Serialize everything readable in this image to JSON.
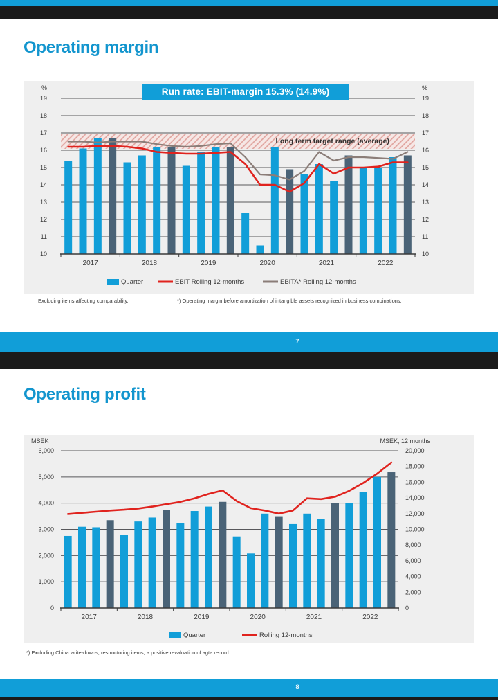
{
  "colors": {
    "accent_cyan": "#119ED8",
    "title_cyan": "#1295CE",
    "dark_bar": "#4A6377",
    "red_line": "#E0231E",
    "gray_line": "#8B7D78",
    "panel_bg": "#EFEFEF",
    "gridline": "#58585B",
    "axis_text": "#3C3C3C",
    "black_strip": "#1B1B1B",
    "band_bg": "#F6E7E5",
    "band_stripe": "#DFA19B"
  },
  "slide1": {
    "title": "Operating margin",
    "runrate": "Run rate: EBIT-margin 15.3% (14.9%)",
    "footnote_left": "Excluding items affecting comparability.",
    "footnote_right": "*) Operating margin before amortization of intangible assets recognized in business combinations.",
    "page_number": "7"
  },
  "slide2": {
    "title": "Operating profit",
    "footnote": "*) Excluding China write-downs, restructuring items, a positive revaluation of agta record",
    "page_number": "8"
  },
  "chart_data": [
    {
      "type": "bar",
      "title": "Run rate: EBIT-margin 15.3% (14.9%)",
      "axis_label_left": "%",
      "axis_label_right": "%",
      "ylim": [
        10,
        19
      ],
      "ytick_step": 1,
      "grid": true,
      "legend_position": "bottom",
      "years": [
        "2017",
        "2018",
        "2019",
        "2020",
        "2021",
        "2022"
      ],
      "quarters_per_year": 4,
      "bar_color_rule": "Q4 bar of each year is dark slate, Q1-Q3 cyan",
      "target_band": {
        "from": 16,
        "to": 17,
        "label": "Long term target range (average)"
      },
      "series": [
        {
          "name": "Quarter",
          "type": "bar",
          "values": [
            15.4,
            16.1,
            16.7,
            16.7,
            15.3,
            15.7,
            16.2,
            16.2,
            15.1,
            15.9,
            16.2,
            16.2,
            12.4,
            10.5,
            16.2,
            14.9,
            14.6,
            15.2,
            14.2,
            15.7,
            15.0,
            15.0,
            15.6,
            15.7
          ]
        },
        {
          "name": "EBIT Rolling 12-months",
          "type": "line",
          "values": [
            16.2,
            16.2,
            16.25,
            16.25,
            16.2,
            16.1,
            15.9,
            15.85,
            15.8,
            15.8,
            15.85,
            15.9,
            15.2,
            14.0,
            14.0,
            13.6,
            14.1,
            15.2,
            14.65,
            15.0,
            15.0,
            15.05,
            15.3,
            15.3
          ]
        },
        {
          "name": "EBITA* Rolling 12-months",
          "type": "line",
          "values": [
            16.5,
            16.5,
            16.45,
            16.5,
            16.5,
            16.5,
            16.35,
            16.25,
            16.2,
            16.25,
            16.35,
            16.4,
            15.6,
            14.6,
            14.55,
            14.3,
            14.8,
            15.9,
            15.4,
            15.6,
            15.6,
            15.55,
            15.5,
            15.9
          ]
        }
      ]
    },
    {
      "type": "bar",
      "axis_label_left": "MSEK",
      "axis_label_right": "MSEK, 12 months",
      "ylim_left": [
        0,
        6000
      ],
      "ytick_step_left": 1000,
      "ylim_right": [
        0,
        20000
      ],
      "ytick_step_right": 2000,
      "grid": true,
      "legend_position": "bottom",
      "years": [
        "2017",
        "2018",
        "2019",
        "2020",
        "2021",
        "2022"
      ],
      "quarters_per_year": 4,
      "bar_color_rule": "Q4 bar of each year is dark slate, Q1-Q3 cyan",
      "series": [
        {
          "name": "Quarter",
          "type": "bar",
          "axis": "left",
          "values": [
            2750,
            3100,
            3080,
            3350,
            2800,
            3300,
            3450,
            3750,
            3250,
            3700,
            3870,
            4050,
            2730,
            2080,
            3600,
            3500,
            3200,
            3600,
            3400,
            4000,
            4000,
            4430,
            5000,
            5180
          ]
        },
        {
          "name": "Rolling 12-months",
          "type": "line",
          "axis": "right",
          "values": [
            11950,
            12100,
            12250,
            12400,
            12500,
            12650,
            12900,
            13200,
            13500,
            13950,
            14500,
            14950,
            13600,
            12700,
            12400,
            12000,
            12400,
            13950,
            13850,
            14150,
            14900,
            15900,
            17100,
            18500
          ]
        }
      ]
    }
  ]
}
